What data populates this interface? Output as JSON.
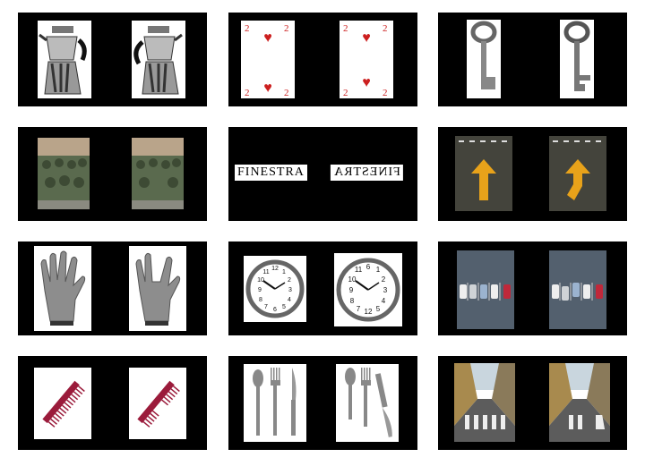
{
  "stimuli": [
    {
      "id": "coffee-pot",
      "left": "unaltered",
      "right": "altered handle"
    },
    {
      "id": "playing-card",
      "left": "two of hearts",
      "right": "mirrored / altered pips"
    },
    {
      "id": "key",
      "left": "unaltered",
      "right": "altered bit"
    },
    {
      "id": "soldiers",
      "left": "unaltered",
      "right": "altered"
    },
    {
      "id": "word",
      "left": "FINESTRA",
      "right": "FINESTRA"
    },
    {
      "id": "road-arrow",
      "left": "straight arrow",
      "right": "bent arrow"
    },
    {
      "id": "glove",
      "left": "unaltered",
      "right": "missing finger"
    },
    {
      "id": "clock",
      "left": "unaltered",
      "right": "altered numerals"
    },
    {
      "id": "parked-cars",
      "left": "unaltered",
      "right": "altered"
    },
    {
      "id": "comb",
      "left": "unaltered",
      "right": "missing teeth"
    },
    {
      "id": "cutlery",
      "left": "spoon fork knife",
      "right": "altered"
    },
    {
      "id": "street",
      "left": "unaltered",
      "right": "altered crossing"
    }
  ],
  "word_stimulus": {
    "left_text": "FINESTRA",
    "right_text": "FINESTRA"
  },
  "colors": {
    "panel": "#000000",
    "card_red": "#cc1f1f",
    "comb": "#9b1b3b",
    "arrow": "#e8a21a"
  }
}
